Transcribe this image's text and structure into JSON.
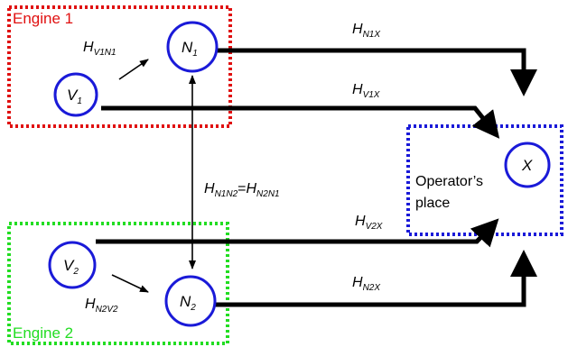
{
  "zones": {
    "engine1": {
      "label": "Engine 1",
      "color": "#e01010"
    },
    "engine2": {
      "label": "Engine 2",
      "color": "#22dd22"
    },
    "operator": {
      "label_line1": "Operator’s",
      "label_line2": "place",
      "color": "#1a1ad8"
    }
  },
  "nodes": {
    "v1": {
      "main": "V",
      "sub": "1"
    },
    "n1": {
      "main": "N",
      "sub": "1"
    },
    "v2": {
      "main": "V",
      "sub": "2"
    },
    "n2": {
      "main": "N",
      "sub": "2"
    },
    "x": {
      "main": "X",
      "sub": ""
    }
  },
  "edges": {
    "hv1n1": {
      "main": "H",
      "sub": "V1N1"
    },
    "hn1x": {
      "main": "H",
      "sub": "N1X"
    },
    "hv1x": {
      "main": "H",
      "sub": "V1X"
    },
    "hn1n2_a": {
      "main": "H",
      "sub": "N1N2"
    },
    "hn1n2_eq": "=",
    "hn1n2_b": {
      "main": "H",
      "sub": "N2N1"
    },
    "hv2x": {
      "main": "H",
      "sub": "V2X"
    },
    "hv2n2": {
      "main": "H",
      "sub": "N2V2"
    },
    "hn2x": {
      "main": "H",
      "sub": "N2X"
    }
  },
  "node_color": "#1a1ad8"
}
